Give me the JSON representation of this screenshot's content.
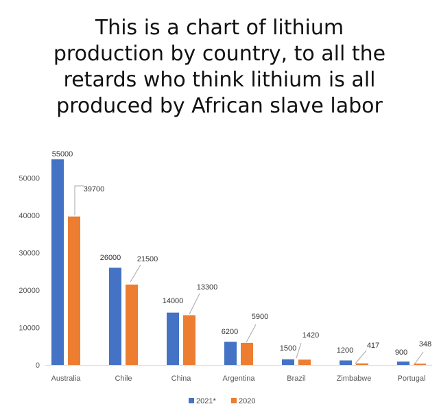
{
  "caption": {
    "lines": [
      "This is a chart of lithium",
      "production by country, to all the",
      "retards who think lithium is all",
      "produced by African slave labor"
    ]
  },
  "chart_data": {
    "type": "bar",
    "categories": [
      "Australia",
      "Chile",
      "China",
      "Argentina",
      "Brazil",
      "Zimbabwe",
      "Portugal"
    ],
    "series": [
      {
        "name": "2021*",
        "color": "#4472c4",
        "values": [
          55000,
          26000,
          14000,
          6200,
          1500,
          1200,
          900
        ]
      },
      {
        "name": "2020",
        "color": "#ed7d31",
        "values": [
          39700,
          21500,
          13300,
          5900,
          1420,
          417,
          348
        ]
      }
    ],
    "y_ticks": [
      0,
      10000,
      20000,
      30000,
      40000,
      50000
    ],
    "ylim": [
      0,
      55000
    ],
    "grid": false,
    "legend_position": "bottom-center"
  }
}
